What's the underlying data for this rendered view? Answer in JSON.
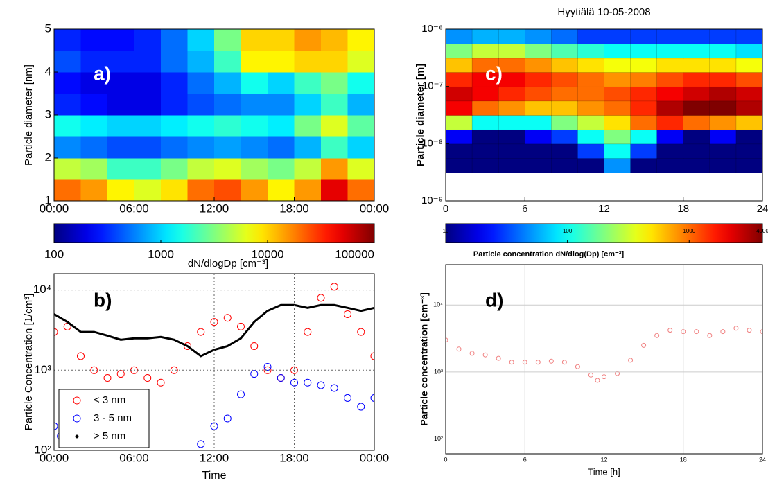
{
  "chart_data": [
    {
      "type": "heatmap",
      "annotation": "a)",
      "ylabel": "Particle diameter [nm]",
      "x": [
        1,
        3,
        5,
        7,
        9,
        11,
        13,
        15,
        17,
        19,
        21,
        23
      ],
      "y": [
        1.25,
        1.75,
        2.25,
        2.75,
        3.25,
        3.75,
        4.25,
        4.75
      ],
      "z": [
        [
          20000,
          15000,
          8000,
          6000,
          9000,
          20000,
          25000,
          15000,
          8000,
          15000,
          50000,
          20000
        ],
        [
          5000,
          4000,
          2000,
          2000,
          3000,
          5000,
          6000,
          4000,
          3000,
          5000,
          15000,
          6000
        ],
        [
          600,
          500,
          400,
          400,
          500,
          600,
          700,
          600,
          500,
          800,
          2000,
          1000
        ],
        [
          1500,
          1200,
          1000,
          1000,
          1200,
          1500,
          1800,
          1500,
          1200,
          3000,
          6000,
          2500
        ],
        [
          300,
          250,
          200,
          200,
          300,
          400,
          500,
          600,
          600,
          1000,
          2000,
          800
        ],
        [
          250,
          200,
          200,
          200,
          300,
          500,
          800,
          1500,
          1000,
          2000,
          3000,
          1500
        ],
        [
          400,
          300,
          300,
          300,
          500,
          800,
          2000,
          8000,
          8000,
          10000,
          10000,
          6000
        ],
        [
          300,
          250,
          250,
          300,
          500,
          1000,
          3000,
          10000,
          10000,
          15000,
          12000,
          8000
        ]
      ],
      "xlim": [
        0,
        24
      ],
      "xticks": [
        {
          "value": 0,
          "label": "00:00"
        },
        {
          "value": 6,
          "label": "06:00"
        },
        {
          "value": 12,
          "label": "12:00"
        },
        {
          "value": 18,
          "label": "18:00"
        },
        {
          "value": 24,
          "label": "00:00"
        }
      ],
      "ylim": [
        1,
        5
      ],
      "yticks": [
        1,
        2,
        3,
        4,
        5
      ],
      "ylog": false,
      "colorbar": {
        "lim": [
          100,
          100000
        ],
        "ticks": [
          100,
          1000,
          10000,
          100000
        ],
        "label": "dN/dlogDp [cm⁻³]",
        "colormap": "jet"
      }
    },
    {
      "type": "scatter",
      "annotation": "b)",
      "xlabel": "Time",
      "ylabel": "Particle Concentration [1/cm³]",
      "xlim": [
        0,
        24
      ],
      "xticks": [
        {
          "value": 0,
          "label": "00:00"
        },
        {
          "value": 6,
          "label": "06:00"
        },
        {
          "value": 12,
          "label": "12:00"
        },
        {
          "value": 18,
          "label": "18:00"
        },
        {
          "value": 24,
          "label": "00:00"
        }
      ],
      "ylim": [
        100,
        16000
      ],
      "ylog": true,
      "yticks": [
        {
          "value": 100,
          "label": "10²"
        },
        {
          "value": 1000,
          "label": "10³"
        },
        {
          "value": 10000,
          "label": "10⁴"
        }
      ],
      "grid": true,
      "grid_style": "dotted",
      "legend": "lower-left",
      "series": [
        {
          "name": "< 3 nm",
          "color": "#ff0000",
          "marker": "circle",
          "x": [
            0,
            1,
            2,
            3,
            4,
            5,
            6,
            7,
            8,
            9,
            10,
            11,
            12,
            13,
            14,
            15,
            16,
            17,
            18,
            19,
            20,
            21,
            22,
            23,
            24
          ],
          "values": [
            3000,
            3500,
            1500,
            1000,
            800,
            900,
            1000,
            800,
            700,
            1000,
            2000,
            3000,
            4000,
            4500,
            3500,
            2000,
            1000,
            800,
            1000,
            3000,
            8000,
            11000,
            5000,
            3000,
            1500
          ]
        },
        {
          "name": "3 - 5 nm",
          "color": "#0000ff",
          "marker": "circle",
          "x": [
            0,
            0.5,
            11,
            12,
            13,
            14,
            15,
            16,
            17,
            18,
            19,
            20,
            21,
            22,
            23,
            24
          ],
          "values": [
            200,
            150,
            120,
            200,
            250,
            500,
            900,
            1100,
            800,
            700,
            700,
            650,
            600,
            450,
            350,
            450
          ]
        },
        {
          "name": "> 5 nm",
          "color": "#000000",
          "marker": "dot",
          "x": [
            0,
            1,
            2,
            3,
            4,
            5,
            6,
            7,
            8,
            9,
            10,
            11,
            12,
            13,
            14,
            15,
            16,
            17,
            18,
            19,
            20,
            21,
            22,
            23,
            24
          ],
          "values": [
            5000,
            4000,
            3000,
            3000,
            2700,
            2400,
            2500,
            2500,
            2600,
            2400,
            2000,
            1500,
            1800,
            2000,
            2500,
            4000,
            5500,
            6500,
            6500,
            6000,
            6500,
            6500,
            6000,
            5500,
            6000
          ]
        }
      ]
    },
    {
      "type": "heatmap",
      "title": "Hyytiälä 10-05-2008",
      "annotation": "c)",
      "ylabel": "Particle diameter [m]",
      "x": [
        1,
        3,
        5,
        7,
        9,
        11,
        13,
        15,
        17,
        19,
        21,
        23
      ],
      "y": [
        4.2e-09,
        7.5e-09,
        1.33e-08,
        2.37e-08,
        4.2e-08,
        7.5e-08,
        1.33e-07,
        2.37e-07,
        4.2e-07,
        7.5e-07
      ],
      "z": [
        [
          10,
          10,
          10,
          10,
          10,
          10,
          50,
          10,
          10,
          10,
          10,
          10
        ],
        [
          10,
          10,
          10,
          10,
          10,
          30,
          100,
          30,
          10,
          10,
          10,
          10
        ],
        [
          20,
          10,
          10,
          20,
          30,
          100,
          200,
          100,
          20,
          10,
          20,
          10
        ],
        [
          300,
          100,
          100,
          100,
          200,
          300,
          500,
          1000,
          1500,
          1000,
          800,
          600
        ],
        [
          2000,
          1000,
          800,
          600,
          600,
          800,
          1000,
          1500,
          3000,
          4000,
          4000,
          3000
        ],
        [
          2500,
          2000,
          1500,
          1200,
          1000,
          1000,
          1200,
          1500,
          2000,
          2500,
          3000,
          2500
        ],
        [
          1500,
          2000,
          2000,
          1500,
          1200,
          1000,
          800,
          900,
          1200,
          1500,
          1500,
          1200
        ],
        [
          600,
          1000,
          1000,
          800,
          600,
          500,
          400,
          400,
          500,
          500,
          500,
          400
        ],
        [
          200,
          300,
          300,
          200,
          150,
          120,
          100,
          100,
          100,
          100,
          100,
          80
        ],
        [
          50,
          60,
          60,
          50,
          40,
          30,
          30,
          30,
          30,
          30,
          30,
          30
        ]
      ],
      "xlim": [
        0,
        24
      ],
      "xticks": [
        0,
        6,
        12,
        18,
        24
      ],
      "ylim": [
        1e-09,
        1e-06
      ],
      "ylog": true,
      "yticks": [
        {
          "value": 1e-09,
          "label": "10⁻⁹"
        },
        {
          "value": 1e-08,
          "label": "10⁻⁸"
        },
        {
          "value": 1e-07,
          "label": "10⁻⁷"
        },
        {
          "value": 1e-06,
          "label": "10⁻⁶"
        }
      ],
      "colorbar": {
        "lim": [
          10,
          4000
        ],
        "ticks": [
          10,
          100,
          1000,
          4000
        ],
        "label": "Particle concentration dN/dlog(Dp) [cm⁻³]",
        "colormap": "jet"
      }
    },
    {
      "type": "scatter",
      "annotation": "d)",
      "xlabel": "Time [h]",
      "ylabel": "Particle concentration [cm⁻³]",
      "xlim": [
        0,
        24
      ],
      "xticks": [
        0,
        6,
        12,
        18,
        24
      ],
      "ylim": [
        60,
        40000
      ],
      "ylog": true,
      "yticks": [
        {
          "value": 100,
          "label": "10²"
        },
        {
          "value": 1000,
          "label": "10³"
        },
        {
          "value": 10000,
          "label": "10⁴"
        }
      ],
      "grid": true,
      "grid_style": "solid",
      "series": [
        {
          "color": "#f08080",
          "marker": "circle",
          "x": [
            0,
            1,
            2,
            3,
            4,
            5,
            6,
            7,
            8,
            9,
            10,
            11,
            11.5,
            12,
            13,
            14,
            15,
            16,
            17,
            18,
            19,
            20,
            21,
            22,
            23,
            24
          ],
          "values": [
            3000,
            2200,
            1900,
            1800,
            1600,
            1400,
            1400,
            1400,
            1450,
            1400,
            1200,
            900,
            750,
            850,
            950,
            1500,
            2500,
            3500,
            4200,
            4000,
            4000,
            3500,
            4000,
            4500,
            4200,
            4000
          ]
        }
      ]
    }
  ]
}
